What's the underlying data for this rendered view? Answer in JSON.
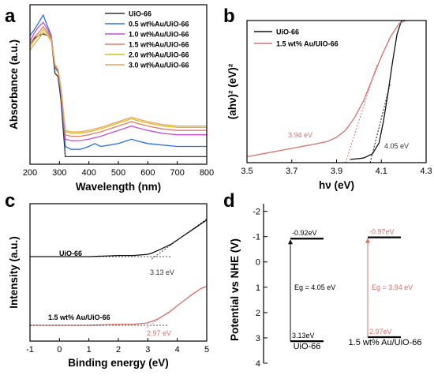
{
  "chart_data": [
    {
      "panel": "a",
      "type": "line",
      "xlabel": "Wavelength (nm)",
      "ylabel": "Absorbance (a.u.)",
      "xlim": [
        200,
        800
      ],
      "xticks": [
        "200",
        "300",
        "400",
        "500",
        "600",
        "700",
        "800"
      ],
      "x": [
        200,
        215,
        230,
        245,
        260,
        272,
        285,
        295,
        305,
        320,
        340,
        370,
        400,
        420,
        440,
        470,
        500,
        530,
        545,
        560,
        600,
        650,
        700,
        750,
        800
      ],
      "series": [
        {
          "name": "UiO-66",
          "color": "#333333",
          "values": [
            0.8,
            0.84,
            0.86,
            0.87,
            0.86,
            0.84,
            0.6,
            0.58,
            0.42,
            0.03,
            0.03,
            0.03,
            0.03,
            0.03,
            0.03,
            0.03,
            0.03,
            0.03,
            0.03,
            0.03,
            0.03,
            0.03,
            0.03,
            0.03,
            0.03
          ]
        },
        {
          "name": "0.5 wt%Au/UiO-66",
          "color": "#2e6ee0",
          "values": [
            0.86,
            0.9,
            0.95,
            1.0,
            0.92,
            0.86,
            0.64,
            0.61,
            0.46,
            0.1,
            0.08,
            0.08,
            0.1,
            0.12,
            0.1,
            0.11,
            0.12,
            0.14,
            0.15,
            0.14,
            0.12,
            0.11,
            0.1,
            0.1,
            0.1
          ]
        },
        {
          "name": "1.0 wt%Au/UiO-66",
          "color": "#c050d8",
          "values": [
            0.82,
            0.88,
            0.92,
            0.95,
            0.9,
            0.85,
            0.65,
            0.62,
            0.48,
            0.15,
            0.14,
            0.14,
            0.15,
            0.16,
            0.17,
            0.19,
            0.21,
            0.23,
            0.24,
            0.23,
            0.21,
            0.19,
            0.18,
            0.18,
            0.18
          ]
        },
        {
          "name": "1.5 wt%Au/UiO-66",
          "color": "#e07a6a",
          "values": [
            0.8,
            0.85,
            0.88,
            0.92,
            0.88,
            0.84,
            0.65,
            0.62,
            0.49,
            0.18,
            0.17,
            0.17,
            0.18,
            0.19,
            0.2,
            0.22,
            0.24,
            0.26,
            0.27,
            0.26,
            0.24,
            0.22,
            0.21,
            0.21,
            0.21
          ]
        },
        {
          "name": "2.0 wt%Au/UiO-66",
          "color": "#d6c020",
          "values": [
            0.78,
            0.83,
            0.86,
            0.9,
            0.87,
            0.83,
            0.66,
            0.63,
            0.5,
            0.2,
            0.19,
            0.19,
            0.2,
            0.21,
            0.22,
            0.24,
            0.26,
            0.28,
            0.29,
            0.28,
            0.26,
            0.24,
            0.23,
            0.23,
            0.23
          ]
        },
        {
          "name": "3.0 wt%Au/UiO-66",
          "color": "#e9a35a",
          "values": [
            0.76,
            0.8,
            0.84,
            0.88,
            0.86,
            0.82,
            0.66,
            0.63,
            0.5,
            0.21,
            0.2,
            0.2,
            0.21,
            0.22,
            0.23,
            0.25,
            0.27,
            0.29,
            0.3,
            0.29,
            0.27,
            0.25,
            0.24,
            0.24,
            0.24
          ]
        }
      ]
    },
    {
      "panel": "b",
      "type": "line",
      "xlabel": "hν (eV)",
      "ylabel": "(ahν)² (eV)²",
      "xlim": [
        3.5,
        4.3
      ],
      "xticks": [
        "3.5",
        "3.7",
        "3.9",
        "4.1",
        "4.3"
      ],
      "series": [
        {
          "name": "UiO-66",
          "color": "#111111",
          "x": [
            3.96,
            4.02,
            4.06,
            4.09,
            4.11,
            4.13,
            4.15,
            4.17,
            4.19,
            4.21
          ],
          "values": [
            0.0,
            0.01,
            0.04,
            0.12,
            0.28,
            0.48,
            0.7,
            0.9,
            1.0,
            1.0
          ]
        },
        {
          "name": "1.5 wt% Au/UiO-66",
          "color": "#d9706a",
          "x": [
            3.5,
            3.6,
            3.7,
            3.8,
            3.86,
            3.9,
            3.94,
            3.98,
            4.02,
            4.06,
            4.1,
            4.14,
            4.18,
            4.21
          ],
          "values": [
            0.02,
            0.05,
            0.08,
            0.11,
            0.13,
            0.16,
            0.21,
            0.3,
            0.42,
            0.58,
            0.74,
            0.88,
            0.98,
            1.0
          ]
        }
      ],
      "annotations": [
        "3.94 eV",
        "4.05 eV"
      ]
    },
    {
      "panel": "c",
      "type": "line",
      "xlabel": "Binding energy (eV)",
      "ylabel": "Intensity (a.u.)",
      "xlim": [
        -1,
        5
      ],
      "xticks": [
        "-1",
        "0",
        "1",
        "2",
        "3",
        "4",
        "5"
      ],
      "series": [
        {
          "name": "UiO-66",
          "color": "#111111",
          "x": [
            -1,
            0,
            1,
            2,
            2.5,
            3.0,
            3.13,
            3.4,
            3.8,
            4.2,
            4.6,
            5.0
          ],
          "values": [
            0.6,
            0.6,
            0.6,
            0.61,
            0.61,
            0.62,
            0.63,
            0.66,
            0.71,
            0.78,
            0.85,
            0.92
          ]
        },
        {
          "name": "1.5 wt% Au/UiO-66",
          "color": "#d9706a",
          "x": [
            -1,
            0,
            1,
            2,
            2.5,
            2.97,
            3.3,
            3.7,
            4.1,
            4.5,
            4.8,
            5.0
          ],
          "values": [
            0.0,
            0.0,
            0.0,
            0.01,
            0.01,
            0.02,
            0.05,
            0.11,
            0.19,
            0.27,
            0.32,
            0.34
          ]
        }
      ],
      "annotations": [
        "3.13 eV",
        "2.97 eV"
      ]
    },
    {
      "panel": "d",
      "type": "diagram",
      "ylabel": "Potential vs NHE (V)",
      "ylim": [
        -2.3,
        4
      ],
      "yticks": [
        "-2",
        "-1",
        "0",
        "1",
        "2",
        "3",
        "4"
      ],
      "ytick_values": [
        -2,
        -1,
        0,
        1,
        2,
        3,
        4
      ],
      "materials": [
        {
          "name": "UiO-66",
          "cb": -0.92,
          "vb": 3.13,
          "cb_label": "-0.92eV",
          "vb_label": "3.13eV",
          "eg_label": "Eg = 4.05 eV",
          "color": "#111111"
        },
        {
          "name": "1.5 wt% Au/UiO-66",
          "cb": -0.97,
          "vb": 2.97,
          "cb_label": "-0.97eV",
          "vb_label": "2.97eV",
          "eg_label": "Eg = 3.94 eV",
          "color": "#d9706a"
        }
      ]
    }
  ],
  "panel_labels": [
    "a",
    "b",
    "c",
    "d"
  ]
}
